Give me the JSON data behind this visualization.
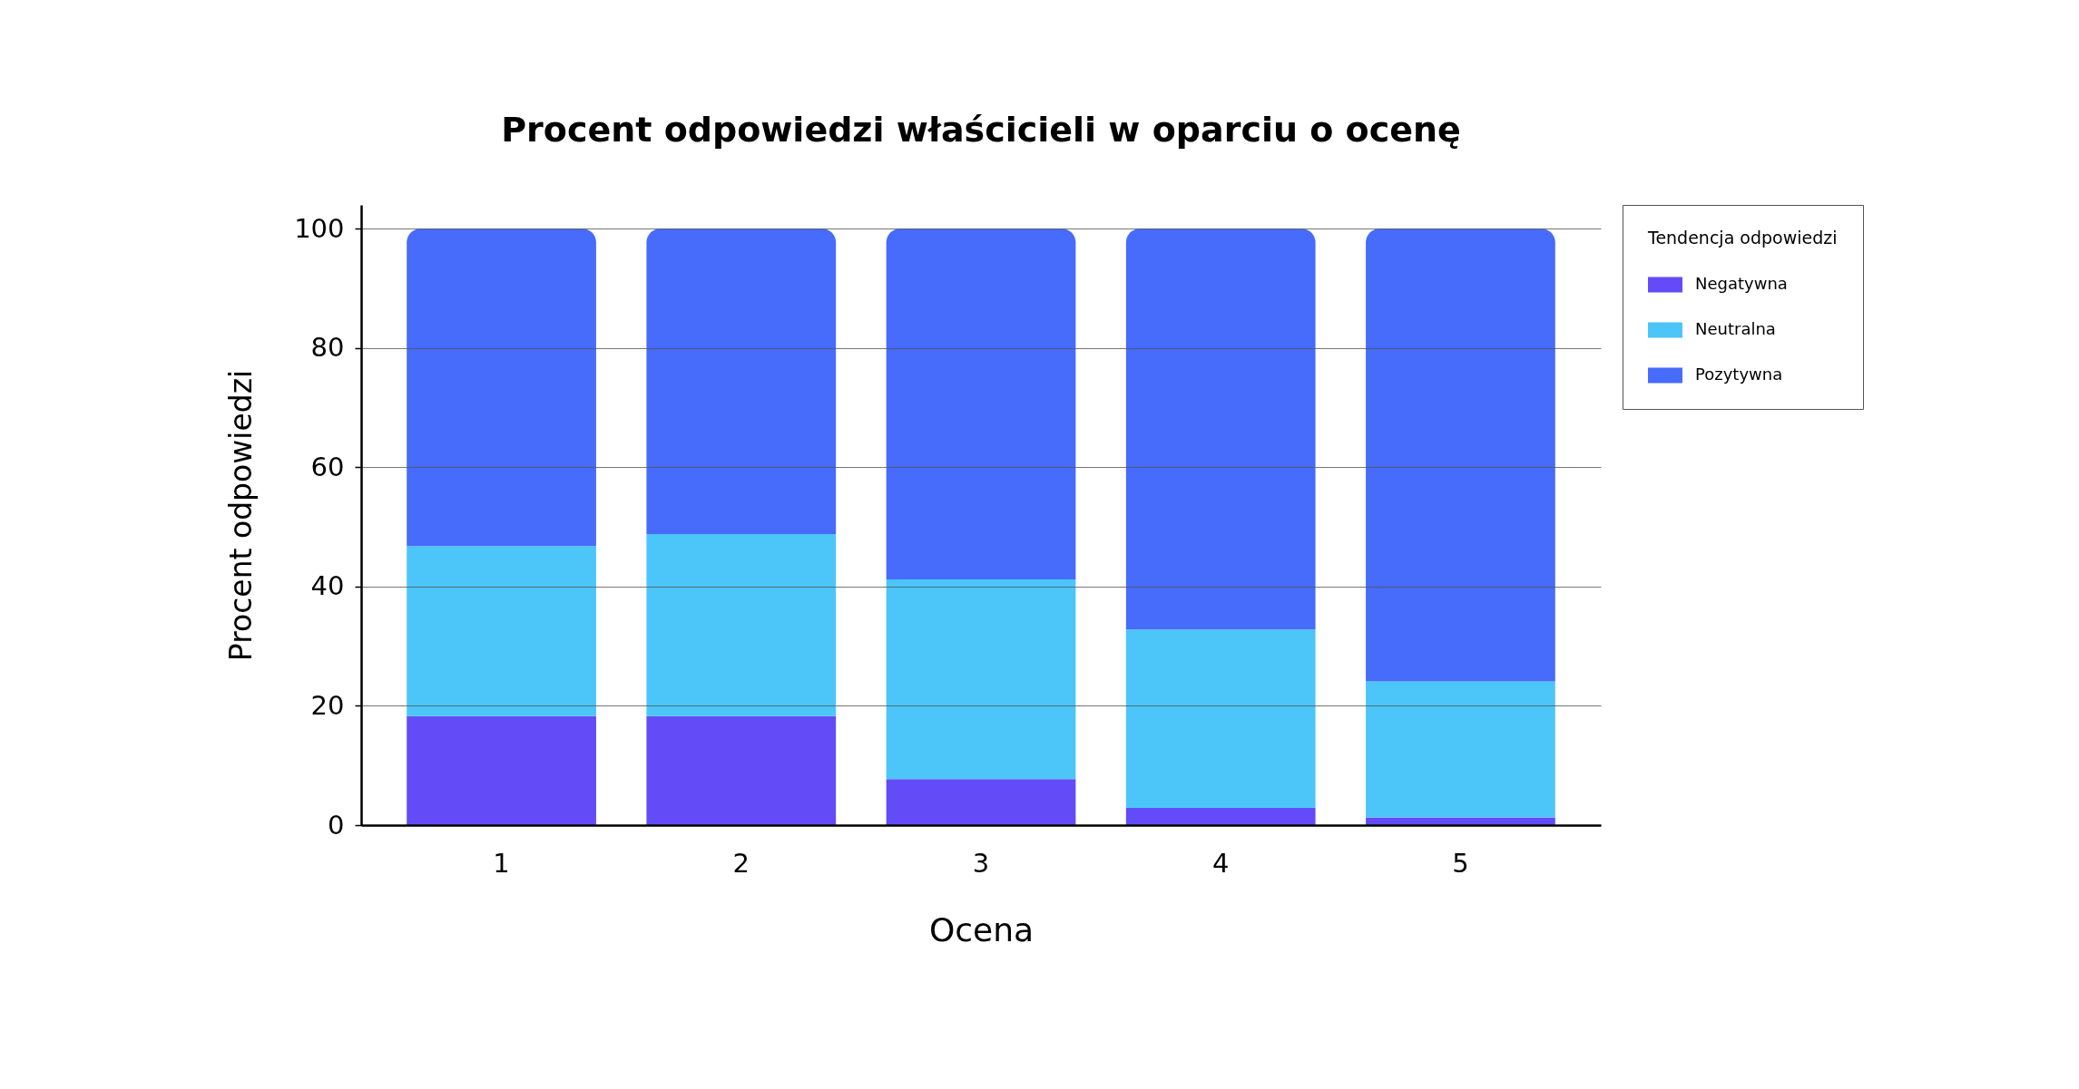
{
  "chart_data": {
    "type": "bar",
    "title": "Procent odpowiedzi właścicieli w oparciu o ocenę",
    "xlabel": "Ocena",
    "ylabel": "Procent odpowiedzi",
    "legend_title": "Tendencja odpowiedzi",
    "categories": [
      "1",
      "2",
      "3",
      "4",
      "5"
    ],
    "stacked": true,
    "series": [
      {
        "name": "Negatywna",
        "color": "#634bf8",
        "values": [
          18.3,
          18.3,
          7.7,
          2.9,
          1.3
        ]
      },
      {
        "name": "Neutralna",
        "color": "#4cc5f9",
        "values": [
          28.5,
          30.5,
          33.5,
          29.9,
          22.8
        ]
      },
      {
        "name": "Pozytywna",
        "color": "#476bfa",
        "values": [
          53.2,
          51.2,
          58.8,
          67.2,
          75.9
        ]
      }
    ],
    "ylim": [
      0,
      104
    ],
    "yticks": [
      0,
      20,
      40,
      60,
      80,
      100
    ],
    "grid": "y",
    "legend": "top right"
  }
}
